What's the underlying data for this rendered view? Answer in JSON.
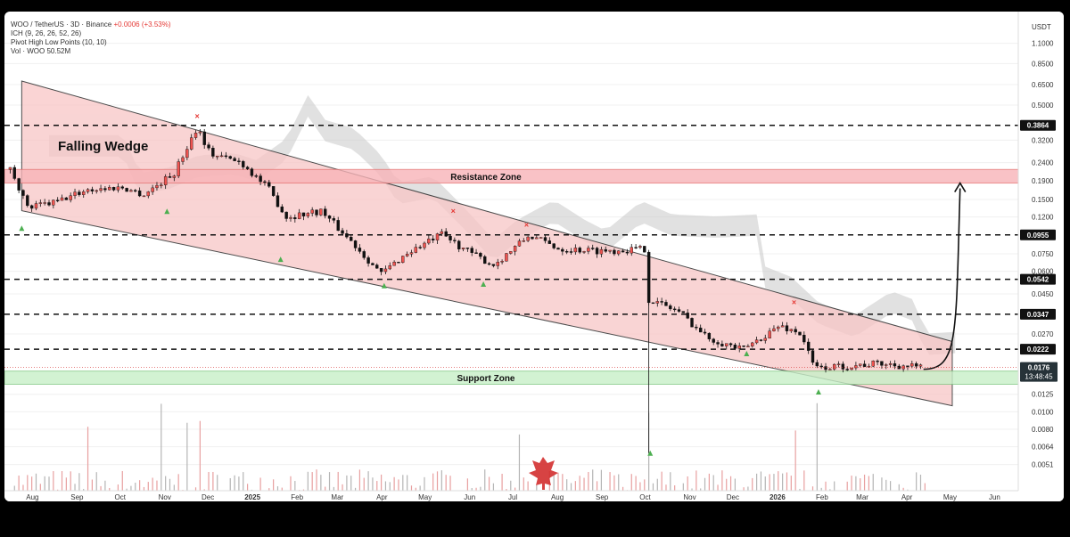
{
  "legend": {
    "symbol": "WOO / TetherUS · 3D · Binance",
    "change": "+0.0006 (+3.53%)",
    "indicators": [
      "ICH (9, 26, 26, 52, 26)",
      "Pivot High Low Points (10, 10)",
      "Vol · WOO  50.52M"
    ]
  },
  "chart_data": {
    "type": "candlestick",
    "symbol": "WOO / TetherUS",
    "interval": "3D",
    "exchange": "Binance",
    "y_scale": "log",
    "y_unit": "USDT",
    "ylim": [
      0.004,
      1.2
    ],
    "y_ticks": [
      "1.1000",
      "0.8500",
      "0.6500",
      "0.5000",
      "0.3200",
      "0.2400",
      "0.1900",
      "0.1500",
      "0.1200",
      "0.0750",
      "0.0600",
      "0.0450",
      "0.0270",
      "0.0125",
      "0.0100",
      "0.0080",
      "0.0064",
      "0.0051"
    ],
    "x_ticks": [
      "Aug",
      "Sep",
      "Oct",
      "Nov",
      "Dec",
      "2025",
      "Feb",
      "Mar",
      "Apr",
      "May",
      "Jun",
      "Jul",
      "Aug",
      "Sep",
      "Oct",
      "Nov",
      "Dec",
      "2026",
      "Feb",
      "Mar",
      "Apr",
      "May",
      "Jun"
    ],
    "current_price": "0.0176",
    "countdown": "13:48:45",
    "levels": [
      {
        "value": 0.3864,
        "label": "0.3864"
      },
      {
        "value": 0.0955,
        "label": "0.0955"
      },
      {
        "value": 0.0542,
        "label": "0.0542"
      },
      {
        "value": 0.0347,
        "label": "0.0347"
      },
      {
        "value": 0.0222,
        "label": "0.0222"
      }
    ],
    "zones": [
      {
        "label": "Resistance Zone",
        "low": 0.185,
        "high": 0.22,
        "color": "#f8b4b8"
      },
      {
        "label": "Support Zone",
        "low": 0.0142,
        "high": 0.0168,
        "color": "#c8f0c8"
      }
    ],
    "pattern": {
      "label": "Falling Wedge",
      "upper": [
        [
          "2024-08-01",
          0.68
        ],
        [
          "2026-05-10",
          0.0245
        ]
      ],
      "lower": [
        [
          "2024-08-01",
          0.13
        ],
        [
          "2026-05-10",
          0.0108
        ]
      ]
    },
    "projection": {
      "from": [
        "2026-04-20",
        0.0172
      ],
      "to": [
        "2026-05-08",
        0.185
      ]
    },
    "close_path": [
      [
        "2024-07-25",
        0.22
      ],
      [
        "2024-08-05",
        0.135
      ],
      [
        "2024-08-25",
        0.145
      ],
      [
        "2024-09-15",
        0.17
      ],
      [
        "2024-10-10",
        0.175
      ],
      [
        "2024-10-25",
        0.16
      ],
      [
        "2024-11-15",
        0.21
      ],
      [
        "2024-12-01",
        0.38
      ],
      [
        "2024-12-10",
        0.27
      ],
      [
        "2025-01-01",
        0.24
      ],
      [
        "2025-01-20",
        0.17
      ],
      [
        "2025-02-01",
        0.12
      ],
      [
        "2025-02-25",
        0.13
      ],
      [
        "2025-03-20",
        0.085
      ],
      [
        "2025-04-08",
        0.058
      ],
      [
        "2025-04-25",
        0.075
      ],
      [
        "2025-05-20",
        0.096
      ],
      [
        "2025-06-10",
        0.075
      ],
      [
        "2025-06-25",
        0.065
      ],
      [
        "2025-07-20",
        0.095
      ],
      [
        "2025-08-10",
        0.08
      ],
      [
        "2025-09-10",
        0.078
      ],
      [
        "2025-10-08",
        0.08
      ],
      [
        "2025-10-11",
        0.042
      ],
      [
        "2025-11-01",
        0.036
      ],
      [
        "2025-11-20",
        0.026
      ],
      [
        "2025-12-15",
        0.022
      ],
      [
        "2026-01-10",
        0.03
      ],
      [
        "2026-01-25",
        0.027
      ],
      [
        "2026-02-03",
        0.0175
      ],
      [
        "2026-02-20",
        0.0178
      ],
      [
        "2026-03-20",
        0.0185
      ],
      [
        "2026-04-20",
        0.0176
      ]
    ],
    "pivot_highs": [
      [
        "2024-12-01",
        0.42
      ],
      [
        "2025-05-28",
        0.125
      ],
      [
        "2025-07-18",
        0.105
      ],
      [
        "2026-01-20",
        0.039
      ]
    ],
    "pivot_lows": [
      [
        "2024-08-01",
        0.104
      ],
      [
        "2024-11-10",
        0.129
      ],
      [
        "2025-01-28",
        0.07
      ],
      [
        "2025-04-10",
        0.05
      ],
      [
        "2025-06-18",
        0.051
      ],
      [
        "2025-10-12",
        0.0059
      ],
      [
        "2025-12-18",
        0.021
      ],
      [
        "2026-02-06",
        0.0129
      ]
    ],
    "volume_spikes": [
      "2024-09-15",
      "2024-11-05",
      "2024-11-25",
      "2024-12-03",
      "2025-07-12",
      "2025-10-10",
      "2026-01-22",
      "2026-02-04"
    ]
  },
  "annotations": {
    "pattern_label": "Falling Wedge",
    "resistance_label": "Resistance Zone",
    "support_label": "Support Zone",
    "axis_unit": "USDT"
  },
  "colors": {
    "up": "#26a69a",
    "down": "#ef5350",
    "candle": "#111111",
    "wedge_fill": "#f8c6c6",
    "cloud": "#c8c8c8",
    "pivot_high": "#e53935",
    "pivot_low": "#4caf50"
  },
  "watermark": "maple-leaf-icon"
}
